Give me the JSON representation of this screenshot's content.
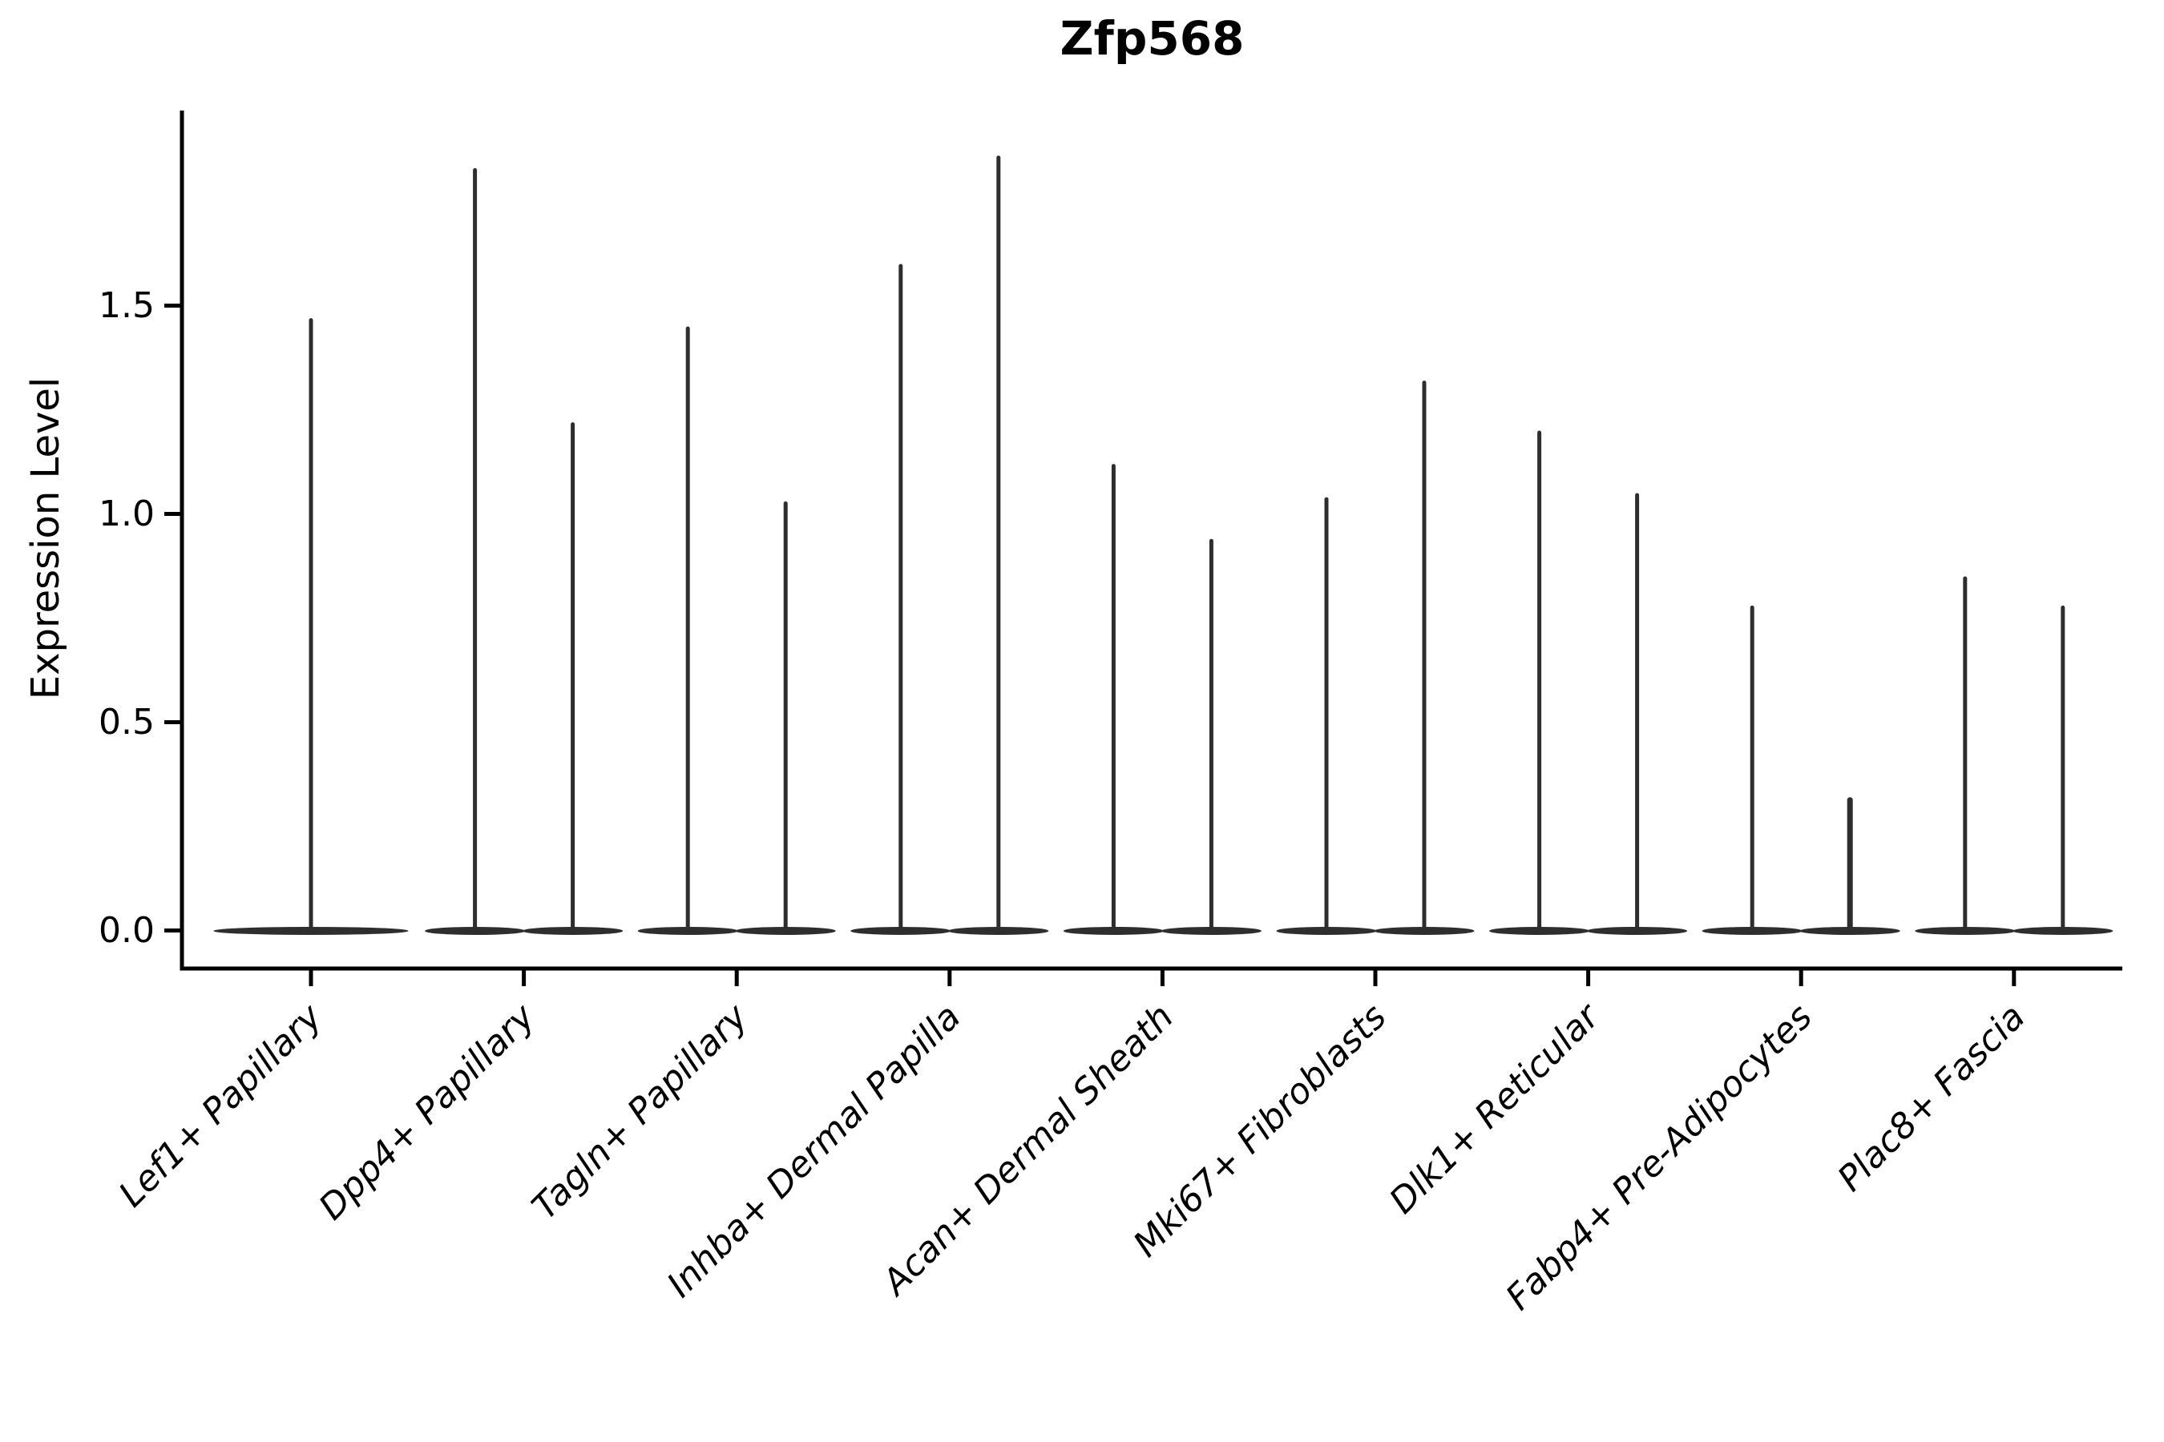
{
  "chart_data": {
    "type": "violin",
    "title": "Zfp568",
    "ylabel": "Expression Level",
    "xlabel": "",
    "categories": [
      "Lef1+ Papillary",
      "Dpp4+ Papillary",
      "Tagln+ Papillary",
      "Inhba+ Dermal Papilla",
      "Acan+ Dermal Sheath",
      "Mki67+ Fibroblasts",
      "Dlk1+ Reticular",
      "Fabp4+ Pre-Adipocytes",
      "Plac8+ Fascia"
    ],
    "yticks": [
      0.0,
      0.5,
      1.0,
      1.5
    ],
    "ytick_labels": [
      "0.0",
      "0.5",
      "1.0",
      "1.5"
    ],
    "ylim": [
      -0.09,
      1.96
    ],
    "baseline_value": 0.0,
    "violin_max_values": [
      [
        1.47
      ],
      [
        1.83,
        1.22
      ],
      [
        1.45,
        1.03
      ],
      [
        1.6,
        1.86
      ],
      [
        1.12,
        0.94
      ],
      [
        1.04,
        1.32
      ],
      [
        1.2,
        1.05
      ],
      [
        0.78,
        0.32
      ],
      [
        0.85,
        0.78
      ]
    ],
    "note": "Seurat-style violin plot: each violin is a flat lens of density at 0 expression with a thin spike rising to its maximum expression value; most categories contain two violins side by side, the first category a single centered violin.",
    "legend": null,
    "grid": false,
    "colors": {
      "violin": "#2e2e2e",
      "axis": "#000000",
      "text": "#000000",
      "background": "#ffffff"
    }
  }
}
